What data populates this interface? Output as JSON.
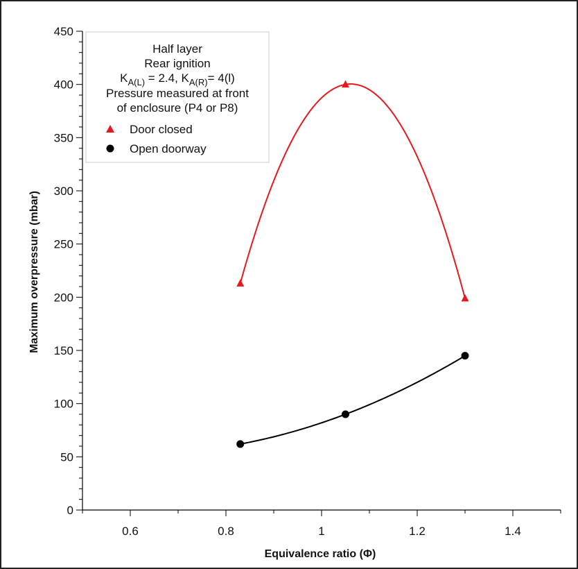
{
  "chart_data": {
    "type": "scatter",
    "xlabel": "Equivalence ratio (Φ)",
    "ylabel": "Maximum overpressure (mbar)",
    "xlim": [
      0.5,
      1.5
    ],
    "ylim": [
      0,
      450
    ],
    "x_ticks": [
      "0.6",
      "0.8",
      "1",
      "1.2",
      "1.4"
    ],
    "y_ticks": [
      "0",
      "50",
      "100",
      "150",
      "200",
      "250",
      "300",
      "350",
      "400",
      "450"
    ],
    "grid": false,
    "legend_placement": "top-left",
    "legend": {
      "lines": [
        "Half layer",
        "Rear ignition"
      ],
      "k_line": {
        "k1_base": "K",
        "k1_sub": "A(L)",
        "k1_value": " = 2.4, ",
        "k2_base": "K",
        "k2_sub": "A(R)",
        "k2_value": "= 4(l)"
      },
      "note_lines": [
        "Pressure measured at front",
        "of enclosure (P4 or P8)"
      ]
    },
    "series": [
      {
        "name": "Door closed",
        "marker": "triangle",
        "color": "#e8191c",
        "x": [
          0.83,
          1.05,
          1.3
        ],
        "y": [
          213,
          400,
          199
        ]
      },
      {
        "name": "Open doorway",
        "marker": "circle",
        "color": "#000000",
        "x": [
          0.83,
          1.05,
          1.3
        ],
        "y": [
          62,
          90,
          145
        ]
      }
    ]
  }
}
